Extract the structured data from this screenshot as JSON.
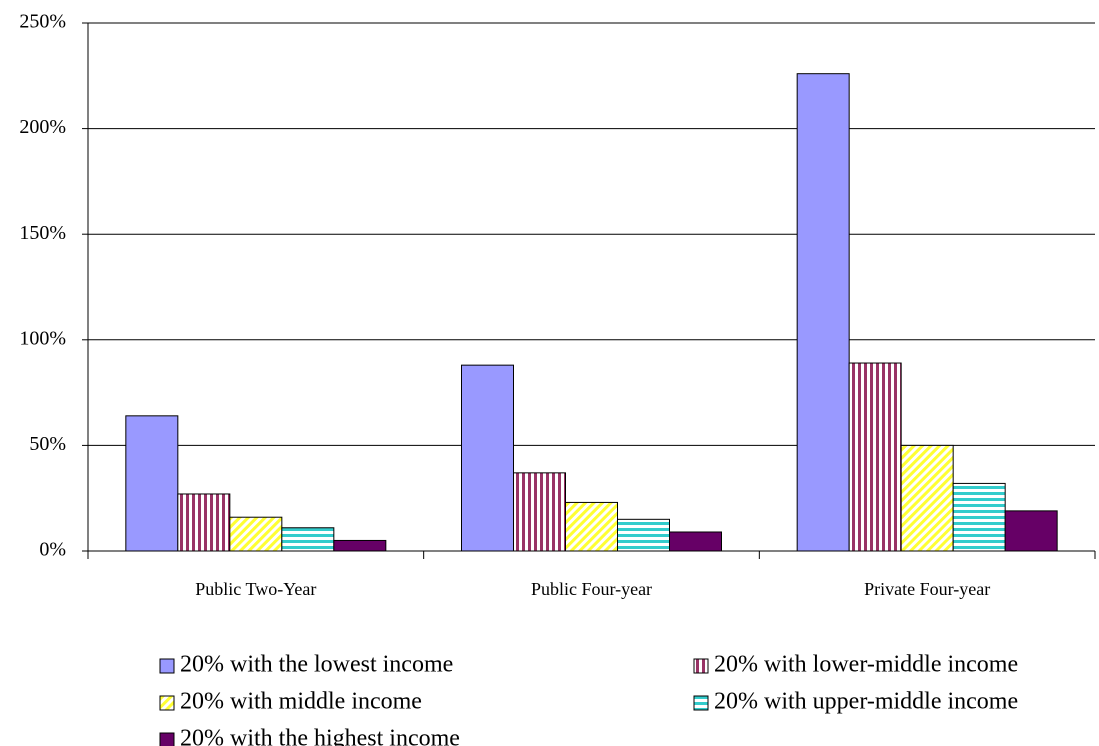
{
  "chart_data": {
    "type": "bar",
    "categories": [
      "Public Two-Year",
      "Public Four-year",
      "Private Four-year"
    ],
    "series": [
      {
        "name": "20% with the lowest income",
        "color": "#9999ff",
        "pattern": "solid",
        "values": [
          64,
          88,
          226
        ]
      },
      {
        "name": "20% with lower-middle income",
        "color": "#993366",
        "pattern": "vertical",
        "values": [
          27,
          37,
          89
        ]
      },
      {
        "name": "20% with middle income",
        "color": "#ffff33",
        "pattern": "diagonal",
        "values": [
          16,
          23,
          50
        ]
      },
      {
        "name": "20% with upper-middle income",
        "color": "#33cccc",
        "pattern": "horizontal",
        "values": [
          11,
          15,
          32
        ]
      },
      {
        "name": "20% with the highest income",
        "color": "#660066",
        "pattern": "solid",
        "values": [
          5,
          9,
          19
        ]
      }
    ],
    "ylim": [
      0,
      250
    ],
    "yticks": [
      {
        "value": 0,
        "label": "0%"
      },
      {
        "value": 50,
        "label": "50%"
      },
      {
        "value": 100,
        "label": "100%"
      },
      {
        "value": 150,
        "label": "150%"
      },
      {
        "value": 200,
        "label": "200%"
      },
      {
        "value": 250,
        "label": "250%"
      }
    ],
    "grid": true
  }
}
